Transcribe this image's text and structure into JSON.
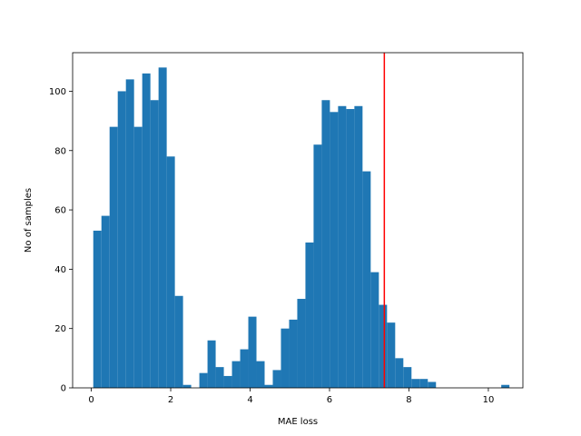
{
  "chart_data": {
    "type": "histogram",
    "xlabel": "MAE loss",
    "ylabel": "No of samples",
    "xlim": [
      -0.47,
      10.87
    ],
    "ylim": [
      0,
      113
    ],
    "x_ticks": [
      0,
      2,
      4,
      6,
      8,
      10
    ],
    "y_ticks": [
      0,
      20,
      40,
      60,
      80,
      100
    ],
    "bin_start": 0.05,
    "bin_width": 0.2055,
    "values": [
      53,
      58,
      88,
      100,
      104,
      88,
      106,
      97,
      108,
      78,
      31,
      1,
      0,
      5,
      16,
      7,
      4,
      9,
      13,
      24,
      9,
      1,
      6,
      20,
      23,
      30,
      49,
      82,
      97,
      93,
      95,
      94,
      95,
      73,
      39,
      28,
      22,
      10,
      7,
      3,
      3,
      2,
      0,
      0,
      0,
      0,
      0,
      0,
      0,
      0,
      1
    ],
    "bar_color": "#1f77b4",
    "threshold_line": {
      "x": 7.38,
      "color": "#ff0000"
    },
    "grid": false
  }
}
